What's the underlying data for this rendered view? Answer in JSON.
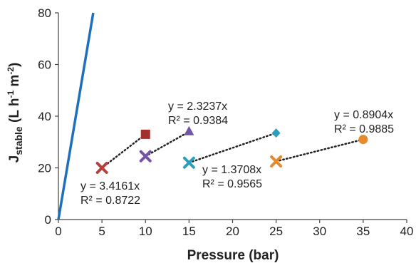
{
  "chart_data": {
    "type": "scatter",
    "title": "",
    "xlabel": "Pressure (bar)",
    "ylabel": {
      "main": "J",
      "sub": "stable",
      "units_open": " (L h",
      "exp1": "-1",
      "units_mid": " m",
      "exp2": "-2",
      "units_close": ")"
    },
    "xlim": [
      0,
      40
    ],
    "ylim": [
      0,
      80
    ],
    "xticks": [
      0,
      5,
      10,
      15,
      20,
      25,
      30,
      35,
      40
    ],
    "yticks": [
      0,
      20,
      40,
      60,
      80
    ],
    "grid": false,
    "legend": "none",
    "reference_line": {
      "color": "#1f6fbf",
      "points": [
        [
          0,
          0
        ],
        [
          4,
          80
        ]
      ]
    },
    "series": [
      {
        "marker": "x",
        "color": "#b5403a",
        "points": [
          [
            5,
            20
          ]
        ],
        "trend_to": [
          10,
          33
        ]
      },
      {
        "marker": "square",
        "color": "#a0312c",
        "points": [
          [
            10,
            33
          ]
        ]
      },
      {
        "marker": "x",
        "color": "#7553a6",
        "points": [
          [
            10,
            24.5
          ]
        ],
        "trend_to": [
          15,
          34
        ]
      },
      {
        "marker": "triangle",
        "color": "#7553a6",
        "points": [
          [
            15,
            34
          ]
        ]
      },
      {
        "marker": "x",
        "color": "#2a9fbd",
        "points": [
          [
            15,
            22
          ]
        ],
        "trend_to": [
          25,
          33.5
        ]
      },
      {
        "marker": "diamond",
        "color": "#2a9fbd",
        "points": [
          [
            25,
            33.5
          ]
        ]
      },
      {
        "marker": "x",
        "color": "#e8892b",
        "points": [
          [
            25,
            22.5
          ]
        ],
        "trend_to": [
          35,
          31
        ]
      },
      {
        "marker": "circle",
        "color": "#e8892b",
        "points": [
          [
            35,
            31
          ]
        ]
      }
    ],
    "annotations": [
      {
        "lines": [
          "y = 3.4161x",
          "R² = 0.8722"
        ]
      },
      {
        "lines": [
          "y = 2.3237x",
          "R² = 0.9384"
        ]
      },
      {
        "lines": [
          "y = 1.3708x",
          "R² = 0.9565"
        ]
      },
      {
        "lines": [
          "y = 0.8904x",
          "R² = 0.9885"
        ]
      }
    ]
  }
}
